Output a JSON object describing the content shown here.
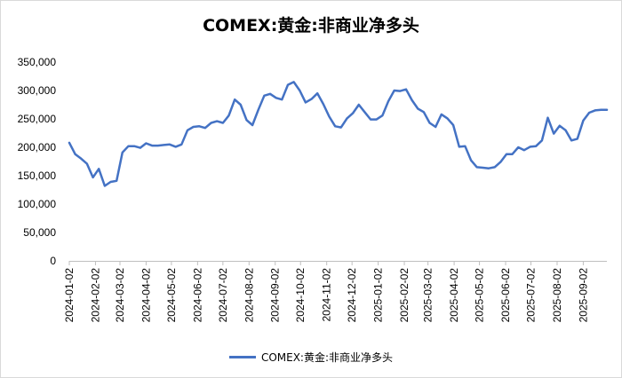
{
  "chart_data": {
    "type": "line",
    "title": "COMEX:黄金:非商业净多头",
    "xlabel": "",
    "ylabel": "",
    "ylim": [
      0,
      350000
    ],
    "yticks": [
      0,
      50000,
      100000,
      150000,
      200000,
      250000,
      300000,
      350000
    ],
    "ytick_labels": [
      "0",
      "50,000",
      "100,000",
      "150,000",
      "200,000",
      "250,000",
      "300,000",
      "350,000"
    ],
    "xtick_labels": [
      "2024-01-02",
      "2024-02-02",
      "2024-03-02",
      "2024-04-02",
      "2024-05-02",
      "2024-06-02",
      "2024-07-02",
      "2024-08-02",
      "2024-09-02",
      "2024-10-02",
      "2024-11-02",
      "2024-12-02",
      "2025-01-02",
      "2025-02-02",
      "2025-03-02",
      "2025-04-02",
      "2025-05-02",
      "2025-06-02",
      "2025-07-02",
      "2025-08-02",
      "2025-09-02"
    ],
    "grid": false,
    "legend_position": "bottom",
    "series": [
      {
        "name": "COMEX:黄金:非商业净多头",
        "color": "#4472C4",
        "x": [
          "2024-01-02",
          "2024-01-09",
          "2024-01-16",
          "2024-01-23",
          "2024-01-30",
          "2024-02-06",
          "2024-02-13",
          "2024-02-20",
          "2024-02-27",
          "2024-03-05",
          "2024-03-12",
          "2024-03-19",
          "2024-03-26",
          "2024-04-02",
          "2024-04-09",
          "2024-04-16",
          "2024-04-23",
          "2024-04-30",
          "2024-05-07",
          "2024-05-14",
          "2024-05-21",
          "2024-05-28",
          "2024-06-04",
          "2024-06-11",
          "2024-06-18",
          "2024-06-25",
          "2024-07-02",
          "2024-07-09",
          "2024-07-16",
          "2024-07-23",
          "2024-07-30",
          "2024-08-06",
          "2024-08-13",
          "2024-08-20",
          "2024-08-27",
          "2024-09-03",
          "2024-09-10",
          "2024-09-17",
          "2024-09-24",
          "2024-10-01",
          "2024-10-08",
          "2024-10-15",
          "2024-10-22",
          "2024-10-29",
          "2024-11-05",
          "2024-11-12",
          "2024-11-19",
          "2024-11-26",
          "2024-12-03",
          "2024-12-10",
          "2024-12-17",
          "2024-12-24",
          "2024-12-31",
          "2025-01-07",
          "2025-01-14",
          "2025-01-21",
          "2025-01-28",
          "2025-02-04",
          "2025-02-11",
          "2025-02-18",
          "2025-02-25",
          "2025-03-04",
          "2025-03-11",
          "2025-03-18",
          "2025-03-25",
          "2025-04-01",
          "2025-04-08",
          "2025-04-15",
          "2025-04-22",
          "2025-04-29",
          "2025-05-06",
          "2025-05-13",
          "2025-05-20",
          "2025-05-27",
          "2025-06-03",
          "2025-06-10",
          "2025-06-17",
          "2025-06-24",
          "2025-07-01",
          "2025-07-08",
          "2025-07-15",
          "2025-07-22",
          "2025-07-29",
          "2025-08-05",
          "2025-08-12",
          "2025-08-19",
          "2025-08-26",
          "2025-09-02",
          "2025-09-09",
          "2025-09-16",
          "2025-09-23",
          "2025-09-30"
        ],
        "values": [
          208000,
          188000,
          180000,
          171000,
          147000,
          162000,
          132000,
          139000,
          141000,
          191000,
          202000,
          202000,
          199000,
          207000,
          203000,
          203000,
          204000,
          205000,
          201000,
          205000,
          230000,
          236000,
          237000,
          234000,
          243000,
          246000,
          243000,
          256000,
          284000,
          275000,
          248000,
          239000,
          266000,
          291000,
          294000,
          287000,
          284000,
          310000,
          315000,
          300000,
          279000,
          285000,
          295000,
          276000,
          254000,
          237000,
          235000,
          251000,
          260000,
          275000,
          262000,
          249000,
          249000,
          256000,
          281000,
          300000,
          299000,
          302000,
          283000,
          268000,
          262000,
          243000,
          236000,
          258000,
          251000,
          239000,
          201000,
          202000,
          177000,
          165000,
          164000,
          163000,
          165000,
          174000,
          188000,
          188000,
          200000,
          195000,
          201000,
          202000,
          212000,
          252000,
          224000,
          238000,
          230000,
          212000,
          215000,
          247000,
          261000,
          265000,
          266000,
          266000
        ]
      }
    ]
  }
}
